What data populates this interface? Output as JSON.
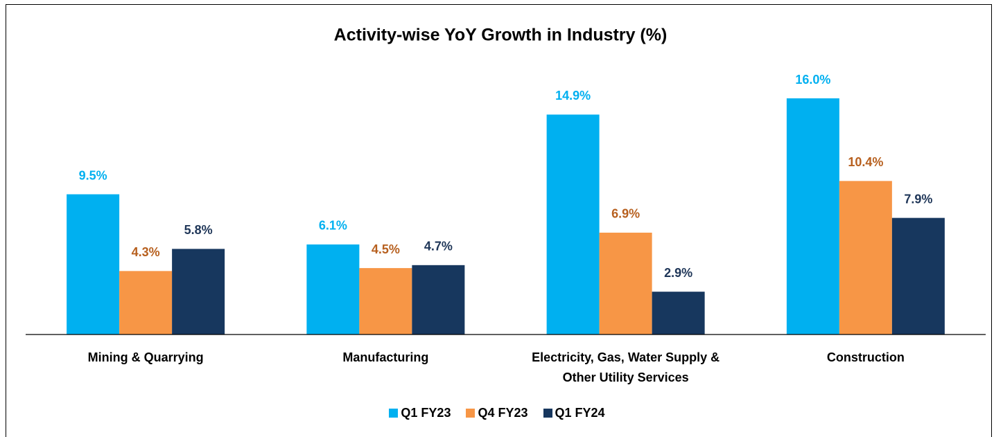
{
  "chart_data": {
    "type": "bar",
    "title": "Activity-wise YoY Growth in Industry (%)",
    "categories": [
      "Mining & Quarrying",
      "Manufacturing",
      "Electricity, Gas, Water Supply & Other Utility Services",
      "Construction"
    ],
    "series": [
      {
        "name": "Q1 FY23",
        "color": "#00b0f0",
        "label_color": "#00b0f0",
        "values": [
          9.5,
          6.1,
          14.9,
          16.0
        ],
        "value_labels": [
          "9.5%",
          "6.1%",
          "14.9%",
          "16.0%"
        ]
      },
      {
        "name": "Q4 FY23",
        "color": "#f79646",
        "label_color": "#b7601f",
        "values": [
          4.3,
          4.5,
          6.9,
          10.4
        ],
        "value_labels": [
          "4.3%",
          "4.5%",
          "6.9%",
          "10.4%"
        ]
      },
      {
        "name": "Q1 FY24",
        "color": "#17375e",
        "label_color": "#1f3658",
        "values": [
          5.8,
          4.7,
          2.9,
          7.9
        ],
        "value_labels": [
          "5.8%",
          "4.7%",
          "2.9%",
          "7.9%"
        ]
      }
    ],
    "legend": "bottom"
  }
}
